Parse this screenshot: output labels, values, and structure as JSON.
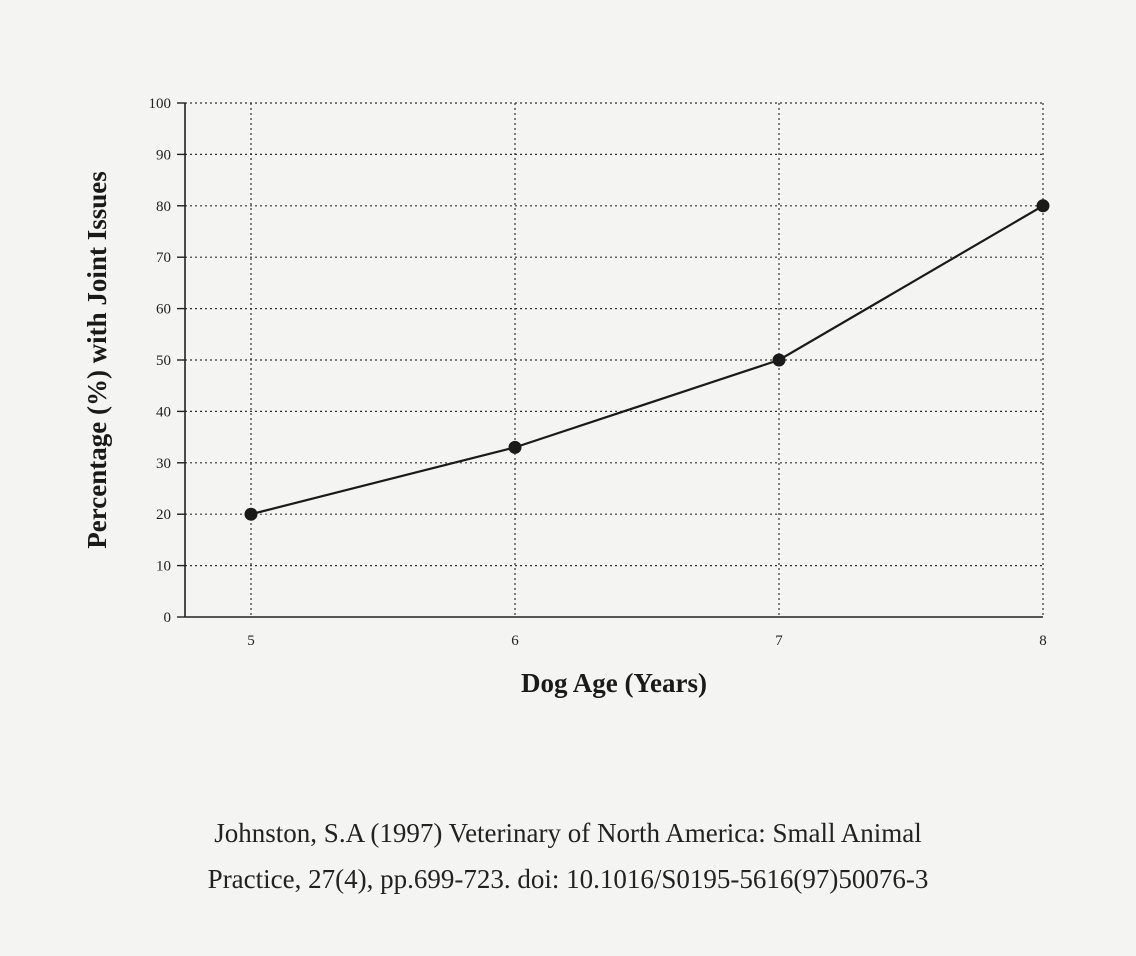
{
  "chart_data": {
    "type": "line",
    "title": "",
    "xlabel": "Dog Age (Years)",
    "ylabel": "Percentage (%) with Joint Issues",
    "x": [
      5,
      6,
      7,
      8
    ],
    "series": [
      {
        "values": [
          20,
          33,
          50,
          80
        ]
      }
    ],
    "xlim": [
      4.75,
      8
    ],
    "ylim": [
      0,
      100
    ],
    "x_ticks": [
      "5",
      "6",
      "7",
      "8"
    ],
    "y_ticks": [
      "0",
      "10",
      "20",
      "30",
      "40",
      "50",
      "60",
      "70",
      "80",
      "90",
      "100"
    ],
    "grid": true,
    "grid_style": "dotted",
    "legend": "none",
    "line_color": "#1a1a1a",
    "marker": "filled-circle"
  },
  "citation": {
    "line1": "Johnston, S.A (1997) Veterinary of North America: Small Animal",
    "line2": "Practice, 27(4), pp.699-723. doi: 10.1016/S0195-5616(97)50076-3"
  }
}
